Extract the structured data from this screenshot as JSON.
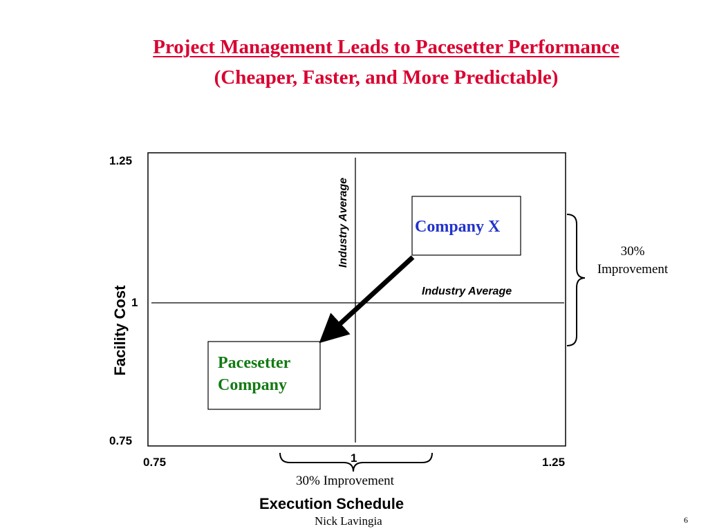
{
  "slide": {
    "title": "Project Management Leads to Pacesetter Performance",
    "subtitle": "(Cheaper, Faster, and More Predictable)",
    "author": "Nick Lavingia",
    "page_number": "6"
  },
  "chart": {
    "y_axis_label": "Facility Cost",
    "x_axis_label": "Execution Schedule",
    "y_ticks": {
      "top": "1.25",
      "mid": "1",
      "bottom": "0.75"
    },
    "x_ticks": {
      "left": "0.75",
      "mid": "1",
      "right": "1.25"
    },
    "industry_average_vertical": "Industry Average",
    "industry_average_horizontal": "Industry Average",
    "company_x": "Company X",
    "pacesetter_line1": "Pacesetter",
    "pacesetter_line2": "Company",
    "improvement_right_pct": "30%",
    "improvement_right_word": "Improvement",
    "improvement_bottom": "30% Improvement",
    "colors": {
      "title": "#d90030",
      "company_x": "#2233cc",
      "pacesetter": "#137a13"
    }
  }
}
